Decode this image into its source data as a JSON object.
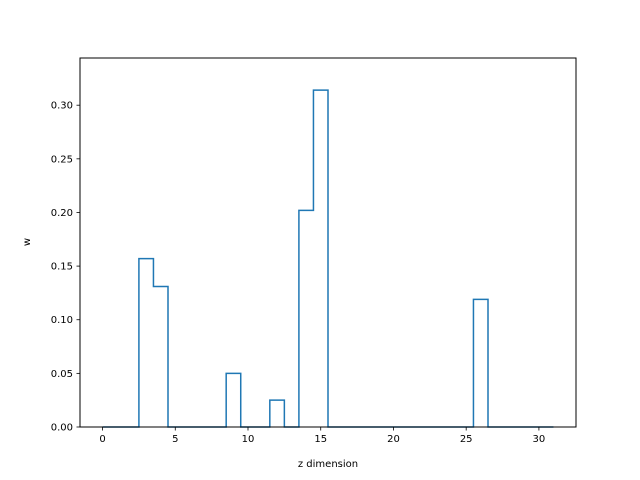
{
  "chart_data": {
    "type": "line",
    "step": "mid",
    "xlabel": "z dimension",
    "ylabel": "w",
    "xlim": [
      -1.55,
      32.55
    ],
    "ylim": [
      0.0,
      0.344
    ],
    "xticks": [
      0,
      5,
      10,
      15,
      20,
      25,
      30
    ],
    "yticks": [
      0.0,
      0.05,
      0.1,
      0.15,
      0.2,
      0.25,
      0.3
    ],
    "ytick_labels": [
      "0.00",
      "0.05",
      "0.10",
      "0.15",
      "0.20",
      "0.25",
      "0.30"
    ],
    "grid": false,
    "color": "#1f77b4",
    "series": [
      {
        "x": [
          0,
          1,
          2,
          3,
          4,
          5,
          6,
          7,
          8,
          9,
          10,
          11,
          12,
          13,
          14,
          15,
          16,
          17,
          18,
          19,
          20,
          21,
          22,
          23,
          24,
          25,
          26,
          27,
          28,
          29,
          30,
          31
        ],
        "values": [
          0,
          0,
          0,
          0.157,
          0.131,
          0,
          0,
          0,
          0,
          0.05,
          0,
          0,
          0.025,
          0,
          0.202,
          0.314,
          0,
          0,
          0,
          0,
          0,
          0,
          0,
          0,
          0,
          0,
          0.119,
          0,
          0,
          0,
          0,
          0
        ]
      }
    ]
  }
}
